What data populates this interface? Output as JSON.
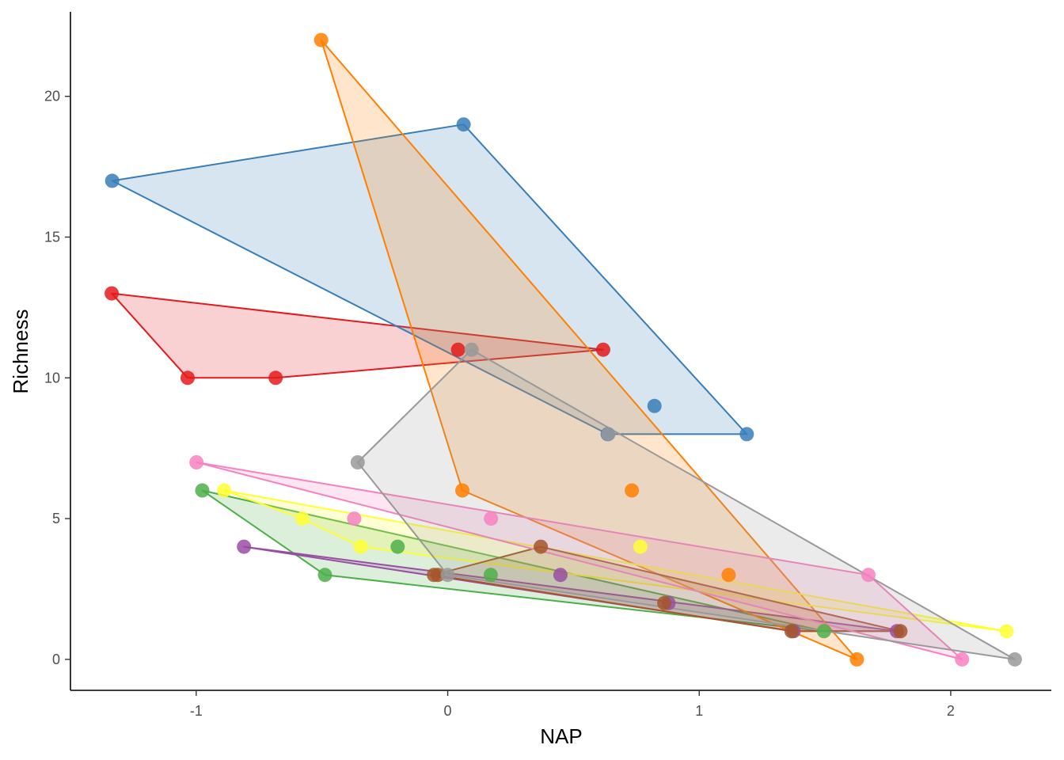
{
  "chart_data": {
    "type": "scatter",
    "subtype": "convex-hull-polygons",
    "xlabel": "NAP",
    "ylabel": "Richness",
    "xlim": [
      -1.5,
      2.4
    ],
    "ylim": [
      -1.1,
      23
    ],
    "x_ticks": [
      -1,
      0,
      1,
      2
    ],
    "x_tick_labels": [
      "-1",
      "0",
      "1",
      "2"
    ],
    "y_ticks": [
      0,
      5,
      10,
      15,
      20
    ],
    "y_tick_labels": [
      "0",
      "5",
      "10",
      "15",
      "20"
    ],
    "grid": false,
    "legend": "none",
    "series": [
      {
        "color": "#E41A1C",
        "points": [
          [
            -1.336,
            13
          ],
          [
            -1.034,
            10
          ],
          [
            -0.684,
            10
          ],
          [
            0.041,
            11
          ],
          [
            0.618,
            11
          ]
        ],
        "hull": [
          [
            -1.336,
            13
          ],
          [
            -1.034,
            10
          ],
          [
            -0.684,
            10
          ],
          [
            0.618,
            11
          ]
        ]
      },
      {
        "color": "#377EB8",
        "points": [
          [
            -1.334,
            17
          ],
          [
            0.063,
            19
          ],
          [
            0.636,
            8
          ],
          [
            0.822,
            9
          ],
          [
            1.189,
            8
          ]
        ],
        "hull": [
          [
            -1.334,
            17
          ],
          [
            0.063,
            19
          ],
          [
            1.189,
            8
          ],
          [
            0.636,
            8
          ]
        ]
      },
      {
        "color": "#4DAF4A",
        "points": [
          [
            -0.976,
            6
          ],
          [
            -0.488,
            3
          ],
          [
            -0.199,
            4
          ],
          [
            0.171,
            3
          ],
          [
            1.496,
            1
          ]
        ],
        "hull": [
          [
            -0.976,
            6
          ],
          [
            -0.488,
            3
          ],
          [
            1.496,
            1
          ]
        ]
      },
      {
        "color": "#984EA3",
        "points": [
          [
            -0.81,
            4
          ],
          [
            0.448,
            3
          ],
          [
            0.878,
            2
          ],
          [
            1.375,
            1
          ],
          [
            1.786,
            1
          ]
        ],
        "hull": [
          [
            -0.81,
            4
          ],
          [
            1.375,
            1
          ],
          [
            1.786,
            1
          ]
        ]
      },
      {
        "color": "#FF7F00",
        "points": [
          [
            -0.503,
            22
          ],
          [
            0.058,
            6
          ],
          [
            0.732,
            6
          ],
          [
            1.117,
            3
          ],
          [
            1.627,
            0
          ]
        ],
        "hull": [
          [
            -0.503,
            22
          ],
          [
            1.627,
            0
          ],
          [
            0.058,
            6
          ]
        ]
      },
      {
        "color": "#FFFF33",
        "points": [
          [
            -0.889,
            6
          ],
          [
            -0.578,
            5
          ],
          [
            -0.346,
            4
          ],
          [
            0.766,
            4
          ],
          [
            2.222,
            1
          ]
        ],
        "hull": [
          [
            -0.889,
            6
          ],
          [
            2.222,
            1
          ],
          [
            -0.346,
            4
          ],
          [
            -0.578,
            5
          ]
        ]
      },
      {
        "color": "#A65628",
        "points": [
          [
            -0.055,
            3
          ],
          [
            -0.039,
            3
          ],
          [
            0.37,
            4
          ],
          [
            0.861,
            2
          ],
          [
            1.367,
            1
          ],
          [
            1.8,
            1
          ]
        ],
        "hull": [
          [
            -0.055,
            3
          ],
          [
            0.37,
            4
          ],
          [
            1.8,
            1
          ],
          [
            1.367,
            1
          ]
        ]
      },
      {
        "color": "#F781BF",
        "points": [
          [
            -0.999,
            7
          ],
          [
            -0.372,
            5
          ],
          [
            0.172,
            5
          ],
          [
            1.673,
            3
          ],
          [
            2.045,
            0
          ]
        ],
        "hull": [
          [
            -0.999,
            7
          ],
          [
            1.673,
            3
          ],
          [
            2.045,
            0
          ]
        ]
      },
      {
        "color": "#999999",
        "points": [
          [
            -0.358,
            7
          ],
          [
            0.0,
            3
          ],
          [
            0.095,
            11
          ],
          [
            0.639,
            8
          ],
          [
            2.255,
            0
          ]
        ],
        "hull": [
          [
            -0.358,
            7
          ],
          [
            0.095,
            11
          ],
          [
            2.255,
            0
          ],
          [
            0.0,
            3
          ]
        ]
      }
    ]
  }
}
